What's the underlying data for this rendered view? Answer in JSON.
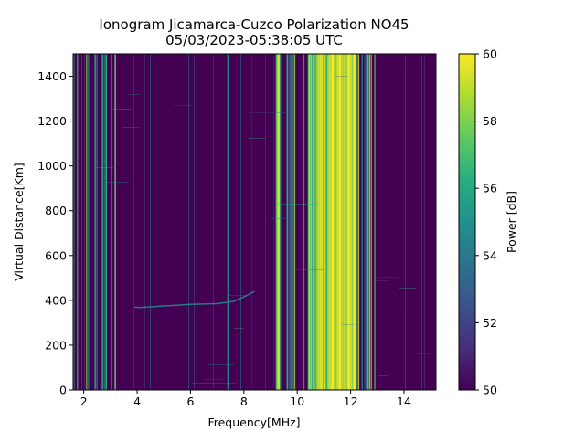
{
  "chart_data": {
    "type": "heatmap",
    "title": "Ionogram Jicamarca-Cuzco Polarization NO45",
    "subtitle": "05/03/2023-05:38:05 UTC",
    "xlabel": "Frequency[MHz]",
    "ylabel": "Virtual Distance[Km]",
    "xlim": [
      1.6,
      15.2
    ],
    "ylim": [
      0,
      1500
    ],
    "x_ticks": [
      2,
      4,
      6,
      8,
      10,
      12,
      14
    ],
    "y_ticks": [
      0,
      200,
      400,
      600,
      800,
      1000,
      1200,
      1400
    ],
    "colorbar": {
      "label": "Power [dB]",
      "range": [
        50,
        60
      ],
      "ticks": [
        50,
        52,
        54,
        56,
        58,
        60
      ],
      "colormap": "viridis"
    },
    "grid": false,
    "high_power_bands_mhz": [
      {
        "from": 1.6,
        "to": 2.4,
        "level": "high"
      },
      {
        "from": 2.4,
        "to": 3.2,
        "level": "medium"
      },
      {
        "from": 9.2,
        "to": 9.35,
        "level": "saturated"
      },
      {
        "from": 9.6,
        "to": 10.4,
        "level": "medium"
      },
      {
        "from": 10.4,
        "to": 12.2,
        "level": "saturated"
      },
      {
        "from": 12.2,
        "to": 13.0,
        "level": "medium"
      }
    ],
    "narrow_lines_mhz": [
      7.4
    ],
    "trace": {
      "description_points": [
        [
          3.9,
          370
        ],
        [
          4.1,
          368
        ],
        [
          6.0,
          382
        ],
        [
          7.0,
          385
        ],
        [
          7.6,
          395
        ],
        [
          8.0,
          415
        ],
        [
          8.4,
          440
        ]
      ]
    }
  }
}
